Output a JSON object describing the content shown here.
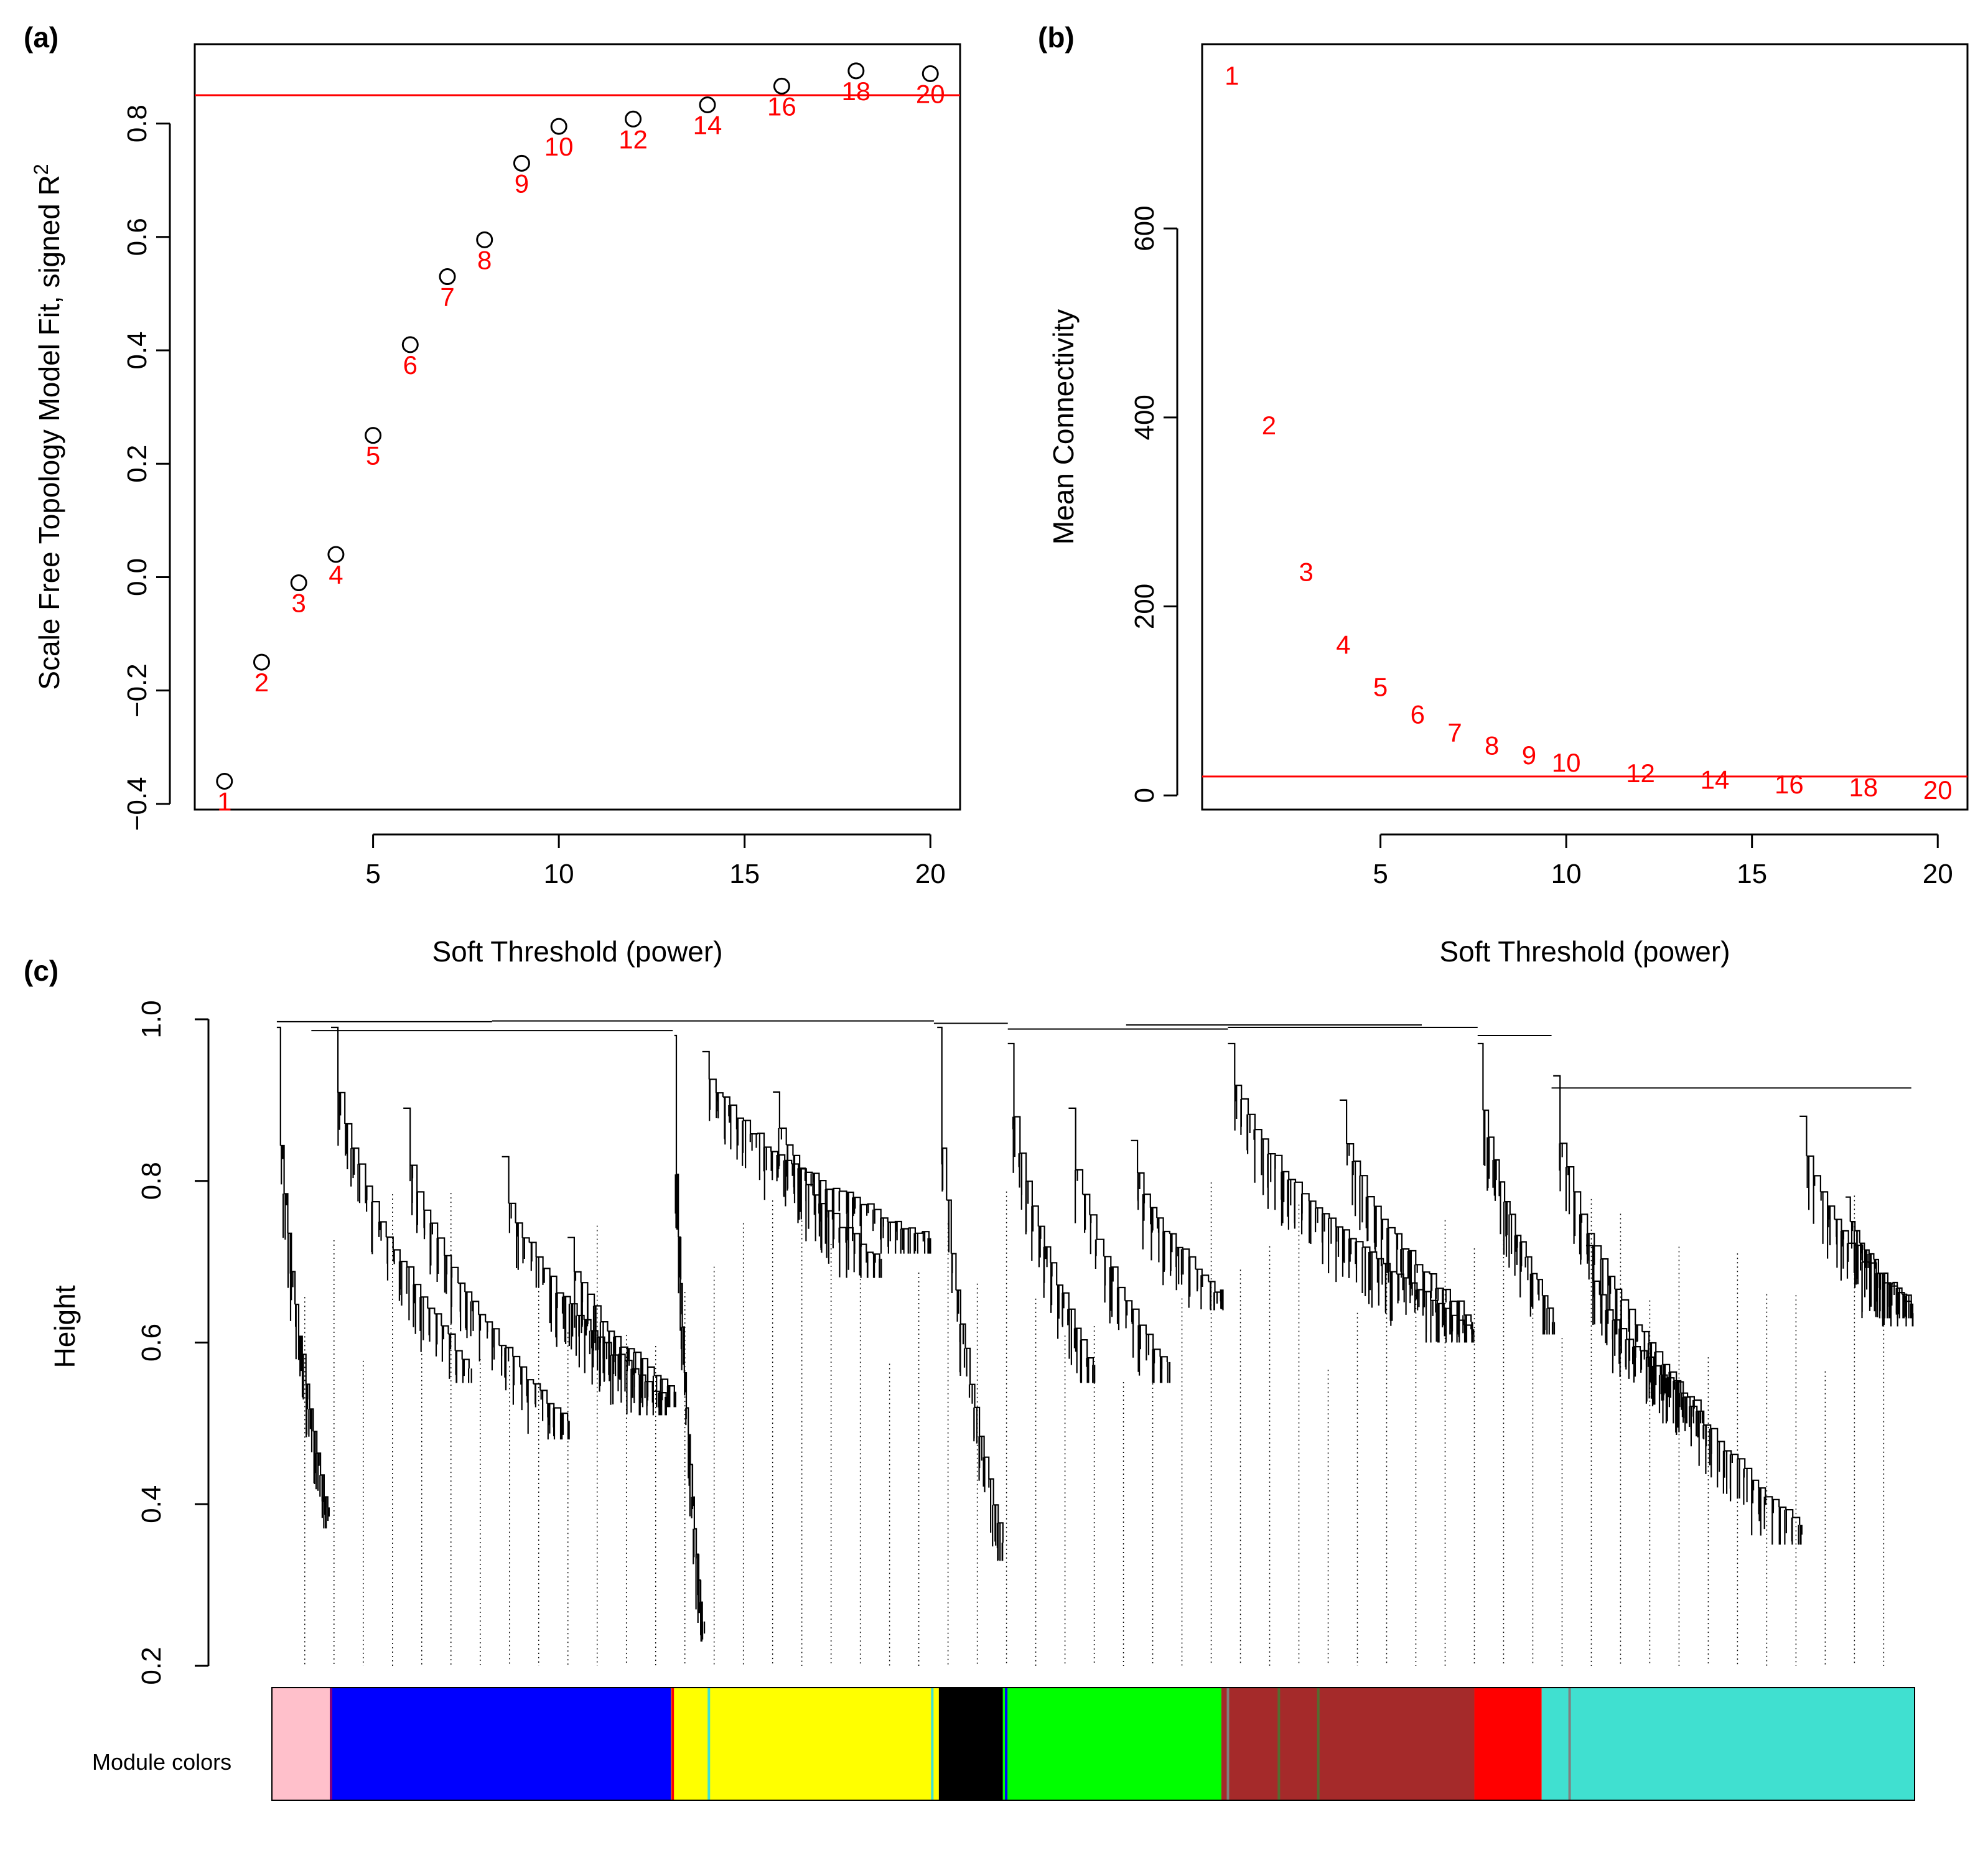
{
  "chart_data": [
    {
      "panel": "(a)",
      "type": "scatter",
      "title": "",
      "xlabel": "Soft Threshold (power)",
      "ylabel": "Scale Free Topology Model Fit, signed R^2",
      "ylabel_main": "Scale Free Topology Model Fit, signed  R",
      "ylabel_sup": "2",
      "xlim": [
        0.2,
        20.8
      ],
      "ylim": [
        -0.41,
        0.94
      ],
      "xticks": [
        5,
        10,
        15,
        20
      ],
      "yticks": [
        -0.4,
        -0.2,
        0.0,
        0.2,
        0.4,
        0.6,
        0.8
      ],
      "ytick_labels": [
        "−0.4",
        "−0.2",
        "0.0",
        "0.2",
        "0.4",
        "0.6",
        "0.8"
      ],
      "threshold_line": 0.85,
      "threshold_color": "#ff0000",
      "point_color": "#000000",
      "label_color": "#ff0000",
      "points": [
        {
          "x": 1,
          "y": -0.36,
          "label": "1"
        },
        {
          "x": 2,
          "y": -0.15,
          "label": "2"
        },
        {
          "x": 3,
          "y": -0.01,
          "label": "3"
        },
        {
          "x": 4,
          "y": 0.04,
          "label": "4"
        },
        {
          "x": 5,
          "y": 0.25,
          "label": "5"
        },
        {
          "x": 6,
          "y": 0.41,
          "label": "6"
        },
        {
          "x": 7,
          "y": 0.53,
          "label": "7"
        },
        {
          "x": 8,
          "y": 0.595,
          "label": "8"
        },
        {
          "x": 9,
          "y": 0.73,
          "label": "9"
        },
        {
          "x": 10,
          "y": 0.795,
          "label": "10"
        },
        {
          "x": 12,
          "y": 0.808,
          "label": "12"
        },
        {
          "x": 14,
          "y": 0.833,
          "label": "14"
        },
        {
          "x": 16,
          "y": 0.866,
          "label": "16"
        },
        {
          "x": 18,
          "y": 0.893,
          "label": "18"
        },
        {
          "x": 20,
          "y": 0.888,
          "label": "20"
        }
      ]
    },
    {
      "panel": "(b)",
      "type": "scatter",
      "title": "",
      "xlabel": "Soft Threshold (power)",
      "ylabel": "Mean Connectivity",
      "xlim": [
        0.2,
        20.8
      ],
      "ylim": [
        -15,
        795
      ],
      "xticks": [
        5,
        10,
        15,
        20
      ],
      "yticks": [
        0,
        200,
        400,
        600
      ],
      "ytick_labels": [
        "0",
        "200",
        "400",
        "600"
      ],
      "threshold_line": 20,
      "threshold_color": "#ff0000",
      "label_color": "#ff0000",
      "points": [
        {
          "x": 1,
          "y": 762,
          "label": "1"
        },
        {
          "x": 2,
          "y": 392,
          "label": "2"
        },
        {
          "x": 3,
          "y": 237,
          "label": "3"
        },
        {
          "x": 4,
          "y": 160,
          "label": "4"
        },
        {
          "x": 5,
          "y": 115,
          "label": "5"
        },
        {
          "x": 6,
          "y": 86,
          "label": "6"
        },
        {
          "x": 7,
          "y": 67,
          "label": "7"
        },
        {
          "x": 8,
          "y": 53,
          "label": "8"
        },
        {
          "x": 9,
          "y": 43,
          "label": "9"
        },
        {
          "x": 10,
          "y": 35,
          "label": "10"
        },
        {
          "x": 12,
          "y": 24,
          "label": "12"
        },
        {
          "x": 14,
          "y": 17,
          "label": "14"
        },
        {
          "x": 16,
          "y": 12,
          "label": "16"
        },
        {
          "x": 18,
          "y": 9,
          "label": "18"
        },
        {
          "x": 20,
          "y": 6,
          "label": "20"
        }
      ]
    },
    {
      "panel": "(c)",
      "type": "dendrogram",
      "title": "",
      "xlabel": "",
      "ylabel": "Height",
      "ylim": [
        0.2,
        1.0
      ],
      "yticks": [
        0.2,
        0.4,
        0.6,
        0.8,
        1.0
      ],
      "ytick_labels": [
        "0.2",
        "0.4",
        "0.6",
        "0.8",
        "1.0"
      ],
      "color_bar_label": "Module colors",
      "module_colors": [
        {
          "name": "pink",
          "color": "#ffc0cb",
          "start": 0.0,
          "end": 0.036
        },
        {
          "name": "blue",
          "color": "#0000ff",
          "start": 0.036,
          "end": 0.243
        },
        {
          "name": "yellow",
          "color": "#ffff00",
          "start": 0.243,
          "end": 0.406
        },
        {
          "name": "black",
          "color": "#000000",
          "start": 0.406,
          "end": 0.445
        },
        {
          "name": "green",
          "color": "#00ff00",
          "start": 0.445,
          "end": 0.578
        },
        {
          "name": "brown",
          "color": "#a52a2a",
          "start": 0.578,
          "end": 0.732
        },
        {
          "name": "red",
          "color": "#ff0000",
          "start": 0.732,
          "end": 0.773
        },
        {
          "name": "turquoise",
          "color": "#40e0d0",
          "start": 0.773,
          "end": 1.0
        }
      ],
      "module_stripes": [
        {
          "color": "#800080",
          "pos": 0.036
        },
        {
          "color": "#ff0000",
          "pos": 0.244
        },
        {
          "color": "#40e0d0",
          "pos": 0.266
        },
        {
          "color": "#40e0d0",
          "pos": 0.402
        },
        {
          "color": "#0000ff",
          "pos": 0.447
        },
        {
          "color": "#808080",
          "pos": 0.582
        },
        {
          "color": "#556b2f",
          "pos": 0.613
        },
        {
          "color": "#556b2f",
          "pos": 0.637
        },
        {
          "color": "#808080",
          "pos": 0.79
        }
      ]
    }
  ],
  "colors": {
    "axis": "#000000",
    "red": "#ff0000"
  }
}
